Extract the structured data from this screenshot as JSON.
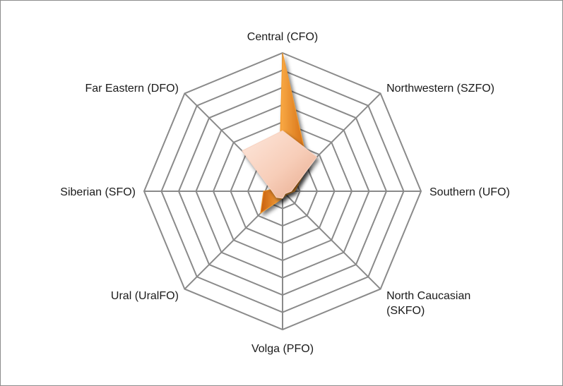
{
  "chart_data": {
    "type": "radar",
    "title": "",
    "categories": [
      "Central (CFO)",
      "Northwestern (SZFO)",
      "Southern (UFO)",
      "North Caucasian (SKFO)",
      "Volga (PFO)",
      "Ural (UralFO)",
      "Siberian (SFO)",
      "Far Eastern (DFO)"
    ],
    "label_lines": [
      [
        "Central (CFO)"
      ],
      [
        "Northwestern (SZFO)"
      ],
      [
        "Southern (UFO)"
      ],
      [
        "North Caucasian",
        "(SKFO)"
      ],
      [
        "Volga (PFO)"
      ],
      [
        "Ural (UralFO)"
      ],
      [
        "Siberian (SFO)"
      ],
      [
        "Far Eastern (DFO)"
      ]
    ],
    "rings": 8,
    "rmax": 8,
    "gridlines": true,
    "legend": "none",
    "series": [
      {
        "color": "#f39a2d",
        "values": [
          8.0,
          2.1,
          0.7,
          0.3,
          0.4,
          1.8,
          1.1,
          0.3
        ]
      },
      {
        "color": "#f8d2c0",
        "values": [
          3.5,
          2.8,
          0.5,
          0.2,
          0.4,
          0.5,
          0.6,
          3.3
        ]
      }
    ]
  }
}
